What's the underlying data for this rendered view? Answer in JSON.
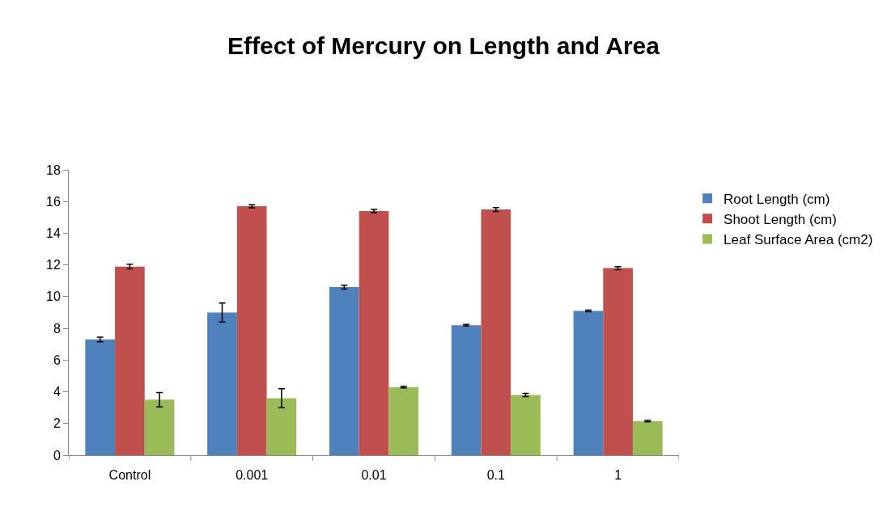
{
  "chart_data": {
    "type": "bar",
    "title": "Effect of Mercury on Length and Area",
    "categories": [
      "Control",
      "0.001",
      "0.01",
      "0.1",
      "1"
    ],
    "series": [
      {
        "name": "Root Length (cm)",
        "color": "#4f81bd",
        "values": [
          7.3,
          9.0,
          10.6,
          8.2,
          9.1
        ],
        "errors": [
          0.15,
          0.6,
          0.12,
          0.05,
          0.05
        ]
      },
      {
        "name": "Shoot Length (cm)",
        "color": "#c0504d",
        "values": [
          11.9,
          15.7,
          15.4,
          15.5,
          11.8
        ],
        "errors": [
          0.15,
          0.1,
          0.1,
          0.12,
          0.1
        ]
      },
      {
        "name": "Leaf Surface Area (cm2)",
        "color": "#9bbb59",
        "values": [
          3.5,
          3.6,
          4.3,
          3.8,
          2.15
        ],
        "errors": [
          0.45,
          0.6,
          0.05,
          0.1,
          0.05
        ]
      }
    ],
    "ylim": [
      0,
      18
    ],
    "yticks": [
      0,
      2,
      4,
      6,
      8,
      10,
      12,
      14,
      16,
      18
    ],
    "grid": false,
    "legend": "right"
  }
}
